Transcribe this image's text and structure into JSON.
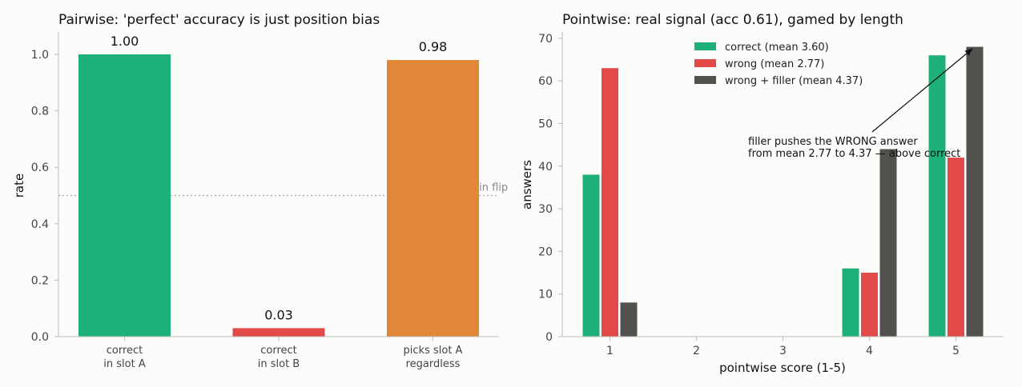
{
  "chart_data": [
    {
      "type": "bar",
      "title": "Pairwise: 'perfect' accuracy is just position bias",
      "ylabel": "rate",
      "xlabel": "",
      "ylim": [
        0,
        1.08
      ],
      "yticks": [
        "0.0",
        "0.2",
        "0.4",
        "0.6",
        "0.8",
        "1.0"
      ],
      "categories": [
        [
          "correct",
          "in slot A"
        ],
        [
          "correct",
          "in slot B"
        ],
        [
          "picks slot A",
          "regardless"
        ]
      ],
      "values": [
        1.0,
        0.03,
        0.98
      ],
      "value_labels": [
        "1.00",
        "0.03",
        "0.98"
      ],
      "colors": [
        "#1db07b",
        "#e24a4a",
        "#e08838"
      ],
      "reference_line": {
        "value": 0.5,
        "label": "coin flip",
        "color": "#aaaaaa"
      },
      "grid": false
    },
    {
      "type": "bar",
      "title": "Pointwise: real signal (acc 0.61), gamed by length",
      "xlabel": "pointwise score (1-5)",
      "ylabel": "answers",
      "ylim": [
        0,
        71
      ],
      "yticks": [
        "0",
        "10",
        "20",
        "30",
        "40",
        "50",
        "60",
        "70"
      ],
      "categories": [
        "1",
        "2",
        "3",
        "4",
        "5"
      ],
      "series": [
        {
          "name": "correct (mean 3.60)",
          "color": "#1db07b",
          "values": [
            38,
            0,
            0,
            16,
            66
          ]
        },
        {
          "name": "wrong (mean 2.77)",
          "color": "#e24a4a",
          "values": [
            63,
            0,
            0,
            15,
            42
          ]
        },
        {
          "name": "wrong + filler (mean 4.37)",
          "color": "#53514e",
          "values": [
            8,
            0,
            0,
            44,
            68
          ]
        }
      ],
      "legend": "top-center",
      "annotation": {
        "lines": [
          "filler pushes the WRONG answer",
          "from mean 2.77 to 4.37 — above correct"
        ],
        "points_to": {
          "category": "5",
          "series": 2,
          "value": 68
        }
      },
      "grid": false
    }
  ]
}
